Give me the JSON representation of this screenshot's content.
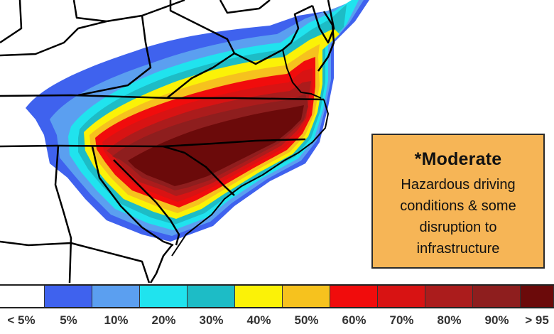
{
  "info_card": {
    "title": "*Moderate",
    "description": "Hazardous driving conditions & some disruption to infrastructure",
    "background": "#f6b556"
  },
  "legend": {
    "bins": [
      {
        "label": "< 5%",
        "color": "#ffffff"
      },
      {
        "label": "5%",
        "color": "#3f62ee"
      },
      {
        "label": "10%",
        "color": "#5b9ff0"
      },
      {
        "label": "20%",
        "color": "#20e3ee"
      },
      {
        "label": "30%",
        "color": "#1dbcc6"
      },
      {
        "label": "40%",
        "color": "#fbf207"
      },
      {
        "label": "50%",
        "color": "#f6c21e"
      },
      {
        "label": "60%",
        "color": "#f10c0c"
      },
      {
        "label": "70%",
        "color": "#d81313"
      },
      {
        "label": "80%",
        "color": "#ab1c1c"
      },
      {
        "label": "90%",
        "color": "#8e1e1e"
      },
      {
        "label": "> 95",
        "color": "#6b0a0a"
      }
    ]
  }
}
